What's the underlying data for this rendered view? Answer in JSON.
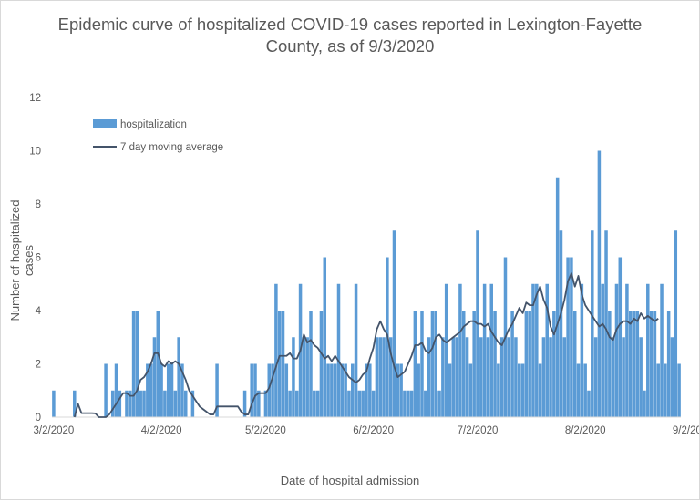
{
  "chart_data": {
    "type": "bar",
    "title_line1": "Epidemic curve of hospitalized COVID-19 cases reported in Lexington-Fayette",
    "title_line2": "County, as of 9/3/2020",
    "xlabel": "Date of hospital admission",
    "ylabel": "Number of hospitalized cases",
    "ylim": [
      0,
      12
    ],
    "yticks": [
      0,
      2,
      4,
      6,
      8,
      10,
      12
    ],
    "grid": false,
    "legend_position": "top-left",
    "x_start": "3/2/2020",
    "xtick_labels": [
      "3/2/2020",
      "4/2/2020",
      "5/2/2020",
      "6/2/2020",
      "7/2/2020",
      "8/2/2020",
      "9/2/2020"
    ],
    "series": [
      {
        "name": "hospitalization",
        "kind": "bar",
        "color": "#5b9bd5",
        "values": [
          1,
          0,
          0,
          0,
          0,
          0,
          1,
          0,
          0,
          0,
          0,
          0,
          0,
          0,
          0,
          2,
          0,
          1,
          2,
          1,
          0,
          1,
          1,
          4,
          4,
          1,
          1,
          2,
          2,
          3,
          4,
          2,
          1,
          2,
          2,
          1,
          3,
          2,
          1,
          0,
          1,
          0,
          0,
          0,
          0,
          0,
          0,
          2,
          0,
          0,
          0,
          0,
          0,
          0,
          0,
          1,
          0,
          2,
          2,
          1,
          0,
          1,
          2,
          2,
          5,
          4,
          4,
          2,
          1,
          3,
          1,
          5,
          3,
          3,
          4,
          1,
          1,
          4,
          6,
          2,
          2,
          2,
          5,
          2,
          2,
          1,
          2,
          5,
          1,
          1,
          2,
          2,
          1,
          3,
          3,
          3,
          6,
          3,
          7,
          2,
          2,
          1,
          1,
          1,
          4,
          2,
          4,
          1,
          3,
          4,
          4,
          1,
          3,
          5,
          2,
          3,
          3,
          5,
          4,
          3,
          2,
          4,
          7,
          3,
          5,
          3,
          5,
          4,
          2,
          3,
          6,
          3,
          4,
          3,
          2,
          2,
          4,
          4,
          5,
          5,
          2,
          3,
          5,
          3,
          4,
          9,
          7,
          3,
          6,
          6,
          4,
          2,
          5,
          2,
          1,
          7,
          3,
          10,
          5,
          7,
          4,
          3,
          5,
          6,
          3,
          5,
          4,
          4,
          4,
          3,
          1,
          5,
          4,
          4,
          2,
          5,
          2,
          4,
          3,
          7,
          2
        ]
      },
      {
        "name": "7 day moving average",
        "kind": "line",
        "color": "#44546a",
        "values": [
          0,
          0.5,
          0.15,
          0.15,
          0.15,
          0.15,
          0.14,
          0,
          0,
          0,
          0.1,
          0.3,
          0.5,
          0.7,
          0.9,
          0.9,
          0.8,
          0.8,
          1.0,
          1.4,
          1.5,
          1.7,
          2.0,
          2.4,
          2.4,
          2.0,
          1.9,
          2.1,
          2.0,
          2.1,
          2.0,
          1.7,
          1.4,
          1.0,
          0.8,
          0.6,
          0.4,
          0.3,
          0.2,
          0.1,
          0.1,
          0.4,
          0.4,
          0.4,
          0.4,
          0.4,
          0.4,
          0.4,
          0.2,
          0.1,
          0.1,
          0.5,
          0.8,
          0.9,
          0.9,
          0.9,
          1.1,
          1.5,
          1.9,
          2.3,
          2.3,
          2.3,
          2.4,
          2.2,
          2.2,
          2.5,
          3.1,
          2.8,
          2.9,
          2.7,
          2.6,
          2.4,
          2.2,
          2.3,
          2.1,
          2.3,
          2.1,
          1.9,
          1.7,
          1.5,
          1.4,
          1.3,
          1.4,
          1.6,
          1.7,
          2.2,
          2.6,
          3.3,
          3.6,
          3.3,
          3.1,
          2.4,
          1.9,
          1.5,
          1.6,
          1.7,
          2.0,
          2.3,
          2.7,
          2.7,
          2.8,
          2.5,
          2.4,
          2.6,
          3.0,
          3.1,
          2.9,
          2.8,
          2.9,
          3.0,
          3.1,
          3.2,
          3.4,
          3.5,
          3.6,
          3.6,
          3.5,
          3.5,
          3.4,
          3.5,
          3.2,
          3.0,
          2.8,
          2.7,
          3.0,
          3.3,
          3.5,
          3.8,
          4.1,
          3.9,
          4.3,
          4.2,
          4.2,
          4.6,
          4.9,
          4.4,
          4.1,
          3.4,
          3.1,
          3.5,
          3.9,
          4.4,
          5.1,
          5.4,
          4.9,
          5.3,
          4.6,
          4.2,
          4.0,
          3.8,
          3.6,
          3.4,
          3.5,
          3.3,
          3.0,
          2.9,
          3.3,
          3.5,
          3.6,
          3.6,
          3.5,
          3.7,
          3.6,
          3.9,
          3.7,
          3.8,
          3.7,
          3.6,
          3.7
        ]
      }
    ]
  }
}
